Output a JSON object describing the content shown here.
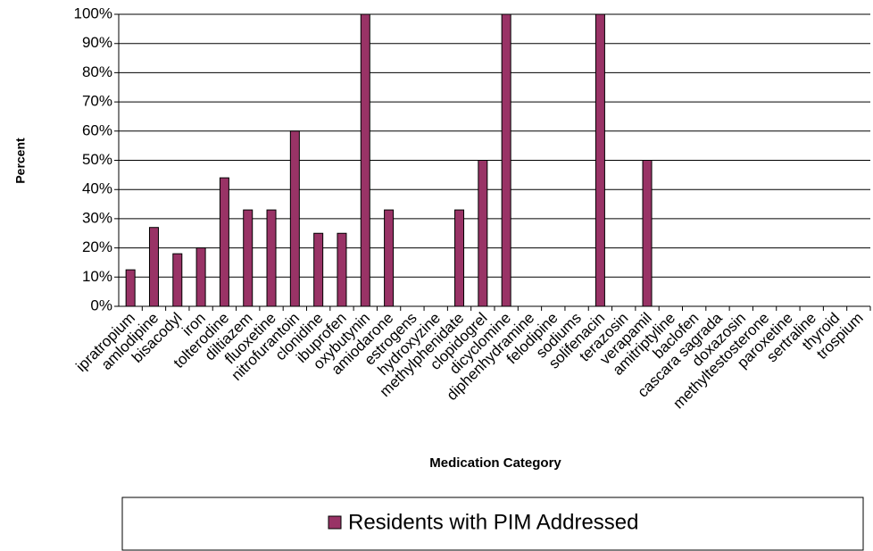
{
  "chart_data": {
    "type": "bar",
    "x_label": "Medication Category",
    "y_label": "Percent",
    "categories": [
      "ipratropium",
      "amlodipine",
      "bisacodyl",
      "iron",
      "tolterodine",
      "diltiazem",
      "fluoxetine",
      "nitrofurantoin",
      "clonidine",
      "ibuprofen",
      "oxybutynin",
      "amiodarone",
      "estrogens",
      "hydroxyzine",
      "methylphenidate",
      "clopidogrel",
      "dicyclomine",
      "diphenhydramine",
      "felodipine",
      "sodiums",
      "solifenacin",
      "terazosin",
      "verapamil",
      "amitriptyline",
      "baclofen",
      "cascara sagrada",
      "doxazosin",
      "methyltestosterone",
      "paroxetine",
      "sertraline",
      "thyroid",
      "trospium"
    ],
    "series": [
      {
        "name": "Residents with PIM Addressed",
        "color": "#993366",
        "values": [
          12.5,
          27,
          18,
          20,
          44,
          33,
          33,
          60,
          25,
          25,
          100,
          33,
          0,
          0,
          33,
          50,
          100,
          0,
          0,
          0,
          100,
          0,
          50,
          0,
          0,
          0,
          0,
          0,
          0,
          0,
          0,
          0
        ]
      }
    ],
    "ylim": [
      0,
      100
    ],
    "yticks": [
      {
        "value": 0,
        "label": "0%"
      },
      {
        "value": 10,
        "label": "10%"
      },
      {
        "value": 20,
        "label": "20%"
      },
      {
        "value": 30,
        "label": "30%"
      },
      {
        "value": 40,
        "label": "40%"
      },
      {
        "value": 50,
        "label": "50%"
      },
      {
        "value": 60,
        "label": "60%"
      },
      {
        "value": 70,
        "label": "70%"
      },
      {
        "value": 80,
        "label": "80%"
      },
      {
        "value": 90,
        "label": "90%"
      },
      {
        "value": 100,
        "label": "100%"
      }
    ],
    "grid": true
  }
}
